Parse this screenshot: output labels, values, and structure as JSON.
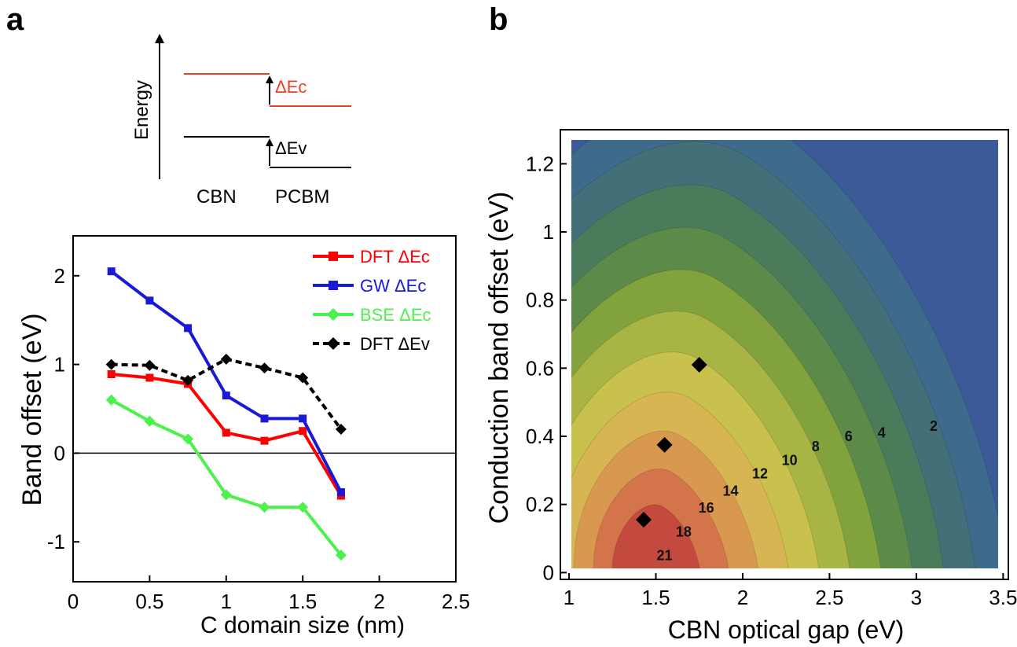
{
  "panel_labels": {
    "a": "a",
    "b": "b"
  },
  "inset": {
    "ylabel": "Energy",
    "left_label": "CBN",
    "right_label": "PCBM",
    "dEc_label": "ΔEc",
    "dEv_label": "ΔEv",
    "colors": {
      "conduction": "#e8412a",
      "valence": "#000000"
    }
  },
  "chart_data": [
    {
      "type": "line",
      "xlabel": "C domain size (nm)",
      "ylabel": "Band offset (eV)",
      "xlim": [
        0,
        2.5
      ],
      "ylim": [
        -1.45,
        2.45
      ],
      "xticks": [
        "0",
        "0.5",
        "1",
        "1.5",
        "2",
        "2.5"
      ],
      "yticks": [
        "2",
        "1",
        "0",
        "-1"
      ],
      "zero_line": true,
      "legend_position": "top-right",
      "x": [
        0.25,
        0.5,
        0.75,
        1.0,
        1.25,
        1.5,
        1.75
      ],
      "series": [
        {
          "name": "DFT ΔEc",
          "color": "#ff0000",
          "marker": "square",
          "dash": false,
          "values": [
            0.89,
            0.85,
            0.78,
            0.23,
            0.14,
            0.25,
            -0.48
          ]
        },
        {
          "name": "GW ΔEc",
          "color": "#1a1ad6",
          "marker": "square",
          "dash": false,
          "values": [
            2.05,
            1.72,
            1.41,
            0.65,
            0.39,
            0.39,
            -0.44
          ]
        },
        {
          "name": "BSE ΔEc",
          "color": "#4ef04e",
          "marker": "diamond",
          "dash": false,
          "values": [
            0.6,
            0.36,
            0.16,
            -0.47,
            -0.61,
            -0.61,
            -1.15
          ]
        },
        {
          "name": "DFT ΔEv",
          "color": "#000000",
          "marker": "diamond",
          "dash": true,
          "values": [
            1.0,
            0.99,
            0.82,
            1.06,
            0.96,
            0.85,
            0.27
          ]
        }
      ]
    },
    {
      "type": "heatmap",
      "xlabel": "CBN optical gap (eV)",
      "ylabel": "Conduction band offset (eV)",
      "xlim": [
        0.95,
        3.53
      ],
      "ylim": [
        -0.02,
        1.3
      ],
      "xticks": [
        "1",
        "1.5",
        "2",
        "2.5",
        "3",
        "3.5"
      ],
      "yticks": [
        "0",
        "0.2",
        "0.4",
        "0.6",
        "0.8",
        "1",
        "1.2"
      ],
      "contour_levels": [
        "2",
        "4",
        "6",
        "8",
        "10",
        "12",
        "14",
        "16",
        "18",
        "21"
      ],
      "contour_label_positions": [
        {
          "label": "21",
          "x": 1.55,
          "y": 0.05
        },
        {
          "label": "18",
          "x": 1.66,
          "y": 0.12
        },
        {
          "label": "16",
          "x": 1.79,
          "y": 0.19
        },
        {
          "label": "14",
          "x": 1.93,
          "y": 0.24
        },
        {
          "label": "12",
          "x": 2.1,
          "y": 0.29
        },
        {
          "label": "10",
          "x": 2.27,
          "y": 0.33
        },
        {
          "label": "8",
          "x": 2.42,
          "y": 0.37
        },
        {
          "label": "6",
          "x": 2.61,
          "y": 0.4
        },
        {
          "label": "4",
          "x": 2.8,
          "y": 0.41
        },
        {
          "label": "2",
          "x": 3.1,
          "y": 0.43
        }
      ],
      "markers": [
        {
          "x": 1.75,
          "y": 0.61
        },
        {
          "x": 1.55,
          "y": 0.375
        },
        {
          "x": 1.43,
          "y": 0.155
        }
      ],
      "colors": [
        "#3c5a98",
        "#3e6a8c",
        "#426f78",
        "#4a7c5c",
        "#5c8a48",
        "#82a23e",
        "#a8b443",
        "#c8c14e",
        "#d6b552",
        "#d9984f",
        "#d3744a",
        "#c44a3f"
      ]
    }
  ]
}
